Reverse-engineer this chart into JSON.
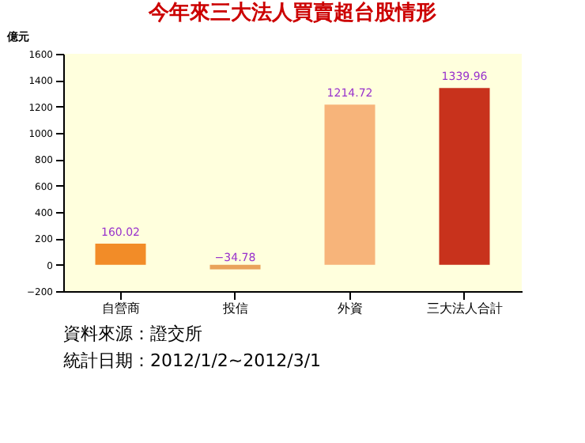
{
  "chart_data": {
    "type": "bar",
    "title": "今年來三大法人買賣超台股情形",
    "ylabel": "億元",
    "categories": [
      "自營商",
      "投信",
      "外資",
      "三大法人合計"
    ],
    "values": [
      160.02,
      -34.78,
      1214.72,
      1339.96
    ],
    "colors": [
      "#f28c28",
      "#e9a25a",
      "#f7b47a",
      "#c8321c"
    ],
    "ylim": [
      -200,
      1600
    ],
    "yticks": [
      -200,
      0,
      200,
      400,
      600,
      800,
      1000,
      1200,
      1400,
      1600
    ],
    "grid": false,
    "data_labels": true,
    "annotations": [
      "資料來源：證交所",
      "統計日期：2012/1/2~2012/3/1"
    ]
  }
}
